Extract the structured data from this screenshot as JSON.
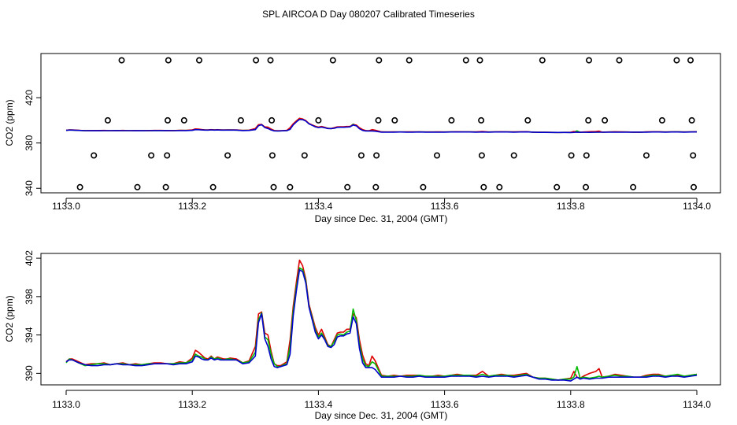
{
  "title": "SPL AIRCOA D  Day 080207  Calibrated Timeseries",
  "chart_data": [
    {
      "id": "top",
      "type": "line",
      "xlabel": "Day since Dec. 31, 2004 (GMT)",
      "ylabel": "CO2 (ppm)",
      "xlim": [
        1133.0,
        1134.0
      ],
      "ylim": [
        336,
        459
      ],
      "x_ticks": [
        1133.0,
        1133.2,
        1133.4,
        1133.6,
        1133.8,
        1134.0
      ],
      "x_tick_labels": [
        "1133.0",
        "1133.2",
        "1133.4",
        "1133.6",
        "1133.8",
        "1134.0"
      ],
      "y_ticks": [
        340,
        380,
        420
      ],
      "y_tick_labels": [
        "340",
        "380",
        "420"
      ],
      "series": [
        {
          "name": "red",
          "color": "#dd0000"
        },
        {
          "name": "green",
          "color": "#00bb00"
        },
        {
          "name": "blue",
          "color": "#0000cc"
        }
      ],
      "marker_levels": [
        453,
        400,
        369,
        341
      ],
      "markers": [
        {
          "x": 1133.088,
          "y": 453
        },
        {
          "x": 1133.162,
          "y": 453
        },
        {
          "x": 1133.211,
          "y": 453
        },
        {
          "x": 1133.301,
          "y": 453
        },
        {
          "x": 1133.324,
          "y": 453
        },
        {
          "x": 1133.423,
          "y": 453
        },
        {
          "x": 1133.496,
          "y": 453
        },
        {
          "x": 1133.544,
          "y": 453
        },
        {
          "x": 1133.634,
          "y": 453
        },
        {
          "x": 1133.656,
          "y": 453
        },
        {
          "x": 1133.755,
          "y": 453
        },
        {
          "x": 1133.829,
          "y": 453
        },
        {
          "x": 1133.877,
          "y": 453
        },
        {
          "x": 1133.968,
          "y": 453
        },
        {
          "x": 1133.99,
          "y": 453
        },
        {
          "x": 1133.066,
          "y": 400
        },
        {
          "x": 1133.161,
          "y": 400
        },
        {
          "x": 1133.187,
          "y": 400
        },
        {
          "x": 1133.277,
          "y": 400
        },
        {
          "x": 1133.326,
          "y": 400
        },
        {
          "x": 1133.4,
          "y": 400
        },
        {
          "x": 1133.495,
          "y": 400
        },
        {
          "x": 1133.521,
          "y": 400
        },
        {
          "x": 1133.611,
          "y": 400
        },
        {
          "x": 1133.658,
          "y": 400
        },
        {
          "x": 1133.732,
          "y": 400
        },
        {
          "x": 1133.828,
          "y": 400
        },
        {
          "x": 1133.854,
          "y": 400
        },
        {
          "x": 1133.945,
          "y": 400
        },
        {
          "x": 1133.992,
          "y": 400
        },
        {
          "x": 1133.044,
          "y": 369
        },
        {
          "x": 1133.135,
          "y": 369
        },
        {
          "x": 1133.16,
          "y": 369
        },
        {
          "x": 1133.256,
          "y": 369
        },
        {
          "x": 1133.327,
          "y": 369
        },
        {
          "x": 1133.378,
          "y": 369
        },
        {
          "x": 1133.468,
          "y": 369
        },
        {
          "x": 1133.492,
          "y": 369
        },
        {
          "x": 1133.588,
          "y": 369
        },
        {
          "x": 1133.659,
          "y": 369
        },
        {
          "x": 1133.71,
          "y": 369
        },
        {
          "x": 1133.801,
          "y": 369
        },
        {
          "x": 1133.825,
          "y": 369
        },
        {
          "x": 1133.92,
          "y": 369
        },
        {
          "x": 1133.994,
          "y": 369
        },
        {
          "x": 1133.022,
          "y": 341
        },
        {
          "x": 1133.113,
          "y": 341
        },
        {
          "x": 1133.158,
          "y": 341
        },
        {
          "x": 1133.233,
          "y": 341
        },
        {
          "x": 1133.329,
          "y": 341
        },
        {
          "x": 1133.355,
          "y": 341
        },
        {
          "x": 1133.446,
          "y": 341
        },
        {
          "x": 1133.491,
          "y": 341
        },
        {
          "x": 1133.566,
          "y": 341
        },
        {
          "x": 1133.662,
          "y": 341
        },
        {
          "x": 1133.687,
          "y": 341
        },
        {
          "x": 1133.778,
          "y": 341
        },
        {
          "x": 1133.824,
          "y": 341
        },
        {
          "x": 1133.899,
          "y": 341
        },
        {
          "x": 1133.995,
          "y": 341
        }
      ]
    },
    {
      "id": "bottom",
      "type": "line",
      "xlabel": "Day since Dec. 31, 2004 (GMT)",
      "ylabel": "CO2 (ppm)",
      "xlim": [
        1133.0,
        1134.0
      ],
      "ylim": [
        388.8,
        402.5
      ],
      "x_ticks": [
        1133.0,
        1133.2,
        1133.4,
        1133.6,
        1133.8,
        1134.0
      ],
      "x_tick_labels": [
        "1133.0",
        "1133.2",
        "1133.4",
        "1133.6",
        "1133.8",
        "1134.0"
      ],
      "y_ticks": [
        390,
        394,
        398,
        402
      ],
      "y_tick_labels": [
        "390",
        "394",
        "398",
        "402"
      ],
      "series": [
        {
          "name": "red",
          "color": "#dd0000"
        },
        {
          "name": "green",
          "color": "#00bb00"
        },
        {
          "name": "blue",
          "color": "#0000cc"
        }
      ]
    }
  ],
  "timeseries": {
    "x": [
      1133.0,
      1133.005,
      1133.01,
      1133.02,
      1133.03,
      1133.04,
      1133.05,
      1133.06,
      1133.07,
      1133.08,
      1133.09,
      1133.1,
      1133.11,
      1133.12,
      1133.13,
      1133.14,
      1133.15,
      1133.16,
      1133.17,
      1133.18,
      1133.19,
      1133.2,
      1133.205,
      1133.21,
      1133.215,
      1133.22,
      1133.225,
      1133.23,
      1133.235,
      1133.24,
      1133.245,
      1133.25,
      1133.255,
      1133.26,
      1133.27,
      1133.28,
      1133.29,
      1133.3,
      1133.305,
      1133.31,
      1133.315,
      1133.32,
      1133.325,
      1133.33,
      1133.335,
      1133.34,
      1133.345,
      1133.35,
      1133.355,
      1133.36,
      1133.365,
      1133.37,
      1133.375,
      1133.38,
      1133.385,
      1133.39,
      1133.395,
      1133.4,
      1133.405,
      1133.41,
      1133.415,
      1133.42,
      1133.425,
      1133.43,
      1133.435,
      1133.44,
      1133.445,
      1133.45,
      1133.455,
      1133.46,
      1133.465,
      1133.47,
      1133.475,
      1133.48,
      1133.485,
      1133.49,
      1133.5,
      1133.51,
      1133.52,
      1133.53,
      1133.54,
      1133.55,
      1133.56,
      1133.57,
      1133.58,
      1133.59,
      1133.6,
      1133.61,
      1133.62,
      1133.63,
      1133.64,
      1133.65,
      1133.66,
      1133.67,
      1133.68,
      1133.69,
      1133.7,
      1133.71,
      1133.72,
      1133.73,
      1133.74,
      1133.75,
      1133.76,
      1133.77,
      1133.78,
      1133.79,
      1133.8,
      1133.805,
      1133.81,
      1133.815,
      1133.82,
      1133.83,
      1133.84,
      1133.845,
      1133.85,
      1133.86,
      1133.87,
      1133.88,
      1133.89,
      1133.9,
      1133.91,
      1133.92,
      1133.93,
      1133.94,
      1133.95,
      1133.96,
      1133.97,
      1133.98,
      1133.99,
      1134.0
    ],
    "red": [
      391.2,
      391.5,
      391.5,
      391.2,
      390.9,
      391.0,
      391.0,
      391.1,
      390.9,
      391.0,
      391.1,
      390.9,
      391.0,
      390.9,
      391.0,
      391.1,
      391.1,
      391.0,
      391.0,
      391.2,
      391.1,
      391.6,
      392.4,
      392.2,
      391.9,
      391.6,
      391.5,
      391.8,
      391.5,
      391.7,
      391.6,
      391.5,
      391.5,
      391.6,
      391.5,
      391.1,
      391.3,
      392.8,
      396.2,
      396.4,
      394.2,
      394.0,
      392.3,
      391.0,
      390.8,
      390.8,
      391.0,
      391.2,
      393.5,
      397.0,
      399.5,
      401.8,
      401.2,
      399.8,
      397.2,
      396.0,
      394.8,
      394.0,
      394.6,
      393.8,
      393.0,
      392.8,
      393.5,
      394.2,
      394.3,
      394.3,
      394.6,
      394.6,
      396.2,
      395.8,
      393.5,
      391.9,
      391.0,
      390.8,
      391.8,
      391.3,
      389.8,
      389.7,
      389.8,
      389.7,
      389.8,
      389.8,
      389.8,
      389.7,
      389.7,
      389.8,
      389.7,
      389.8,
      389.9,
      389.8,
      389.8,
      389.8,
      390.2,
      389.7,
      389.8,
      389.9,
      389.8,
      389.8,
      389.9,
      390.0,
      389.6,
      389.5,
      389.5,
      389.4,
      389.3,
      389.4,
      389.5,
      390.2,
      389.6,
      389.5,
      389.7,
      390.0,
      390.2,
      390.5,
      389.6,
      389.7,
      389.9,
      389.8,
      389.7,
      389.6,
      389.6,
      389.8,
      389.9,
      389.9,
      389.7,
      389.8,
      389.8,
      389.7,
      389.8,
      389.9
    ],
    "green": [
      391.1,
      391.5,
      391.4,
      391.1,
      390.8,
      390.9,
      391.0,
      391.0,
      390.9,
      391.0,
      391.0,
      390.9,
      390.9,
      390.9,
      391.0,
      391.0,
      391.0,
      391.0,
      391.0,
      391.1,
      391.1,
      391.4,
      392.0,
      391.8,
      391.7,
      391.5,
      391.4,
      391.7,
      391.5,
      391.6,
      391.5,
      391.4,
      391.5,
      391.5,
      391.4,
      391.1,
      391.2,
      392.2,
      395.6,
      396.3,
      393.8,
      393.5,
      392.0,
      391.0,
      390.7,
      390.7,
      390.9,
      391.0,
      392.8,
      396.5,
      399.0,
      401.0,
      400.8,
      399.6,
      397.0,
      395.8,
      394.5,
      393.8,
      394.2,
      393.6,
      392.9,
      392.8,
      393.3,
      394.0,
      394.1,
      394.0,
      394.3,
      394.4,
      396.7,
      395.5,
      393.0,
      391.5,
      390.8,
      390.7,
      391.2,
      391.0,
      389.7,
      389.7,
      389.7,
      389.7,
      389.7,
      389.7,
      389.8,
      389.7,
      389.7,
      389.7,
      389.7,
      389.8,
      389.8,
      389.8,
      389.8,
      389.7,
      389.9,
      389.7,
      389.8,
      389.8,
      389.8,
      389.7,
      389.8,
      389.9,
      389.6,
      389.5,
      389.5,
      389.4,
      389.3,
      389.4,
      389.4,
      389.6,
      390.7,
      389.5,
      389.6,
      389.5,
      389.6,
      389.7,
      389.6,
      389.7,
      389.8,
      389.7,
      389.7,
      389.6,
      389.6,
      389.7,
      389.8,
      389.8,
      389.7,
      389.8,
      389.9,
      389.7,
      389.8,
      389.9
    ],
    "blue": [
      391.2,
      391.4,
      391.4,
      391.1,
      390.9,
      390.8,
      390.8,
      390.9,
      390.9,
      391.0,
      390.9,
      390.9,
      390.8,
      390.8,
      390.9,
      391.0,
      391.0,
      391.0,
      390.9,
      391.0,
      391.0,
      391.2,
      391.8,
      391.7,
      391.5,
      391.4,
      391.4,
      391.6,
      391.4,
      391.5,
      391.4,
      391.4,
      391.4,
      391.4,
      391.4,
      391.0,
      391.1,
      391.8,
      395.3,
      396.2,
      393.6,
      392.8,
      391.5,
      390.7,
      390.6,
      390.7,
      390.8,
      390.9,
      392.0,
      396.0,
      398.6,
      400.8,
      400.6,
      399.4,
      396.9,
      395.6,
      394.3,
      393.6,
      394.0,
      393.5,
      392.8,
      392.7,
      393.0,
      393.8,
      393.9,
      393.9,
      394.1,
      394.2,
      395.9,
      395.2,
      392.6,
      391.1,
      390.6,
      390.6,
      390.6,
      390.4,
      389.6,
      389.6,
      389.6,
      389.7,
      389.6,
      389.6,
      389.7,
      389.6,
      389.6,
      389.6,
      389.6,
      389.7,
      389.7,
      389.7,
      389.7,
      389.6,
      389.7,
      389.6,
      389.7,
      389.7,
      389.7,
      389.6,
      389.7,
      389.8,
      389.6,
      389.4,
      389.4,
      389.3,
      389.3,
      389.3,
      389.2,
      389.4,
      389.6,
      389.4,
      389.5,
      389.4,
      389.5,
      389.5,
      389.5,
      389.6,
      389.6,
      389.6,
      389.6,
      389.6,
      389.6,
      389.6,
      389.7,
      389.7,
      389.6,
      389.7,
      389.7,
      389.6,
      389.7,
      389.8
    ]
  }
}
